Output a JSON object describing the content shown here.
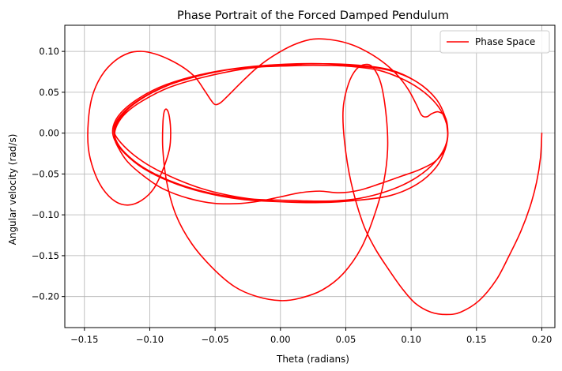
{
  "chart_data": {
    "type": "line",
    "title": "Phase Portrait of the Forced Damped Pendulum",
    "xlabel": "Theta (radians)",
    "ylabel": "Angular velocity (rad/s)",
    "xlim": [
      -0.165,
      0.21
    ],
    "ylim": [
      -0.238,
      0.132
    ],
    "xticks": [
      -0.15,
      -0.1,
      -0.05,
      0.0,
      0.05,
      0.1,
      0.15,
      0.2
    ],
    "xtick_labels": [
      "−0.15",
      "−0.10",
      "−0.05",
      "0.00",
      "0.05",
      "0.10",
      "0.15",
      "0.20"
    ],
    "yticks": [
      -0.2,
      -0.15,
      -0.1,
      -0.05,
      0.0,
      0.05,
      0.1
    ],
    "ytick_labels": [
      "−0.20",
      "−0.15",
      "−0.10",
      "−0.05",
      "0.00",
      "0.05",
      "0.10"
    ],
    "grid": true,
    "legend_position": "top-right",
    "series": [
      {
        "name": "Phase Space",
        "color": "#ff0000",
        "points": [
          [
            0.2,
            0.0
          ],
          [
            0.199,
            -0.03
          ],
          [
            0.196,
            -0.06
          ],
          [
            0.191,
            -0.09
          ],
          [
            0.184,
            -0.12
          ],
          [
            0.175,
            -0.15
          ],
          [
            0.165,
            -0.18
          ],
          [
            0.152,
            -0.205
          ],
          [
            0.138,
            -0.219
          ],
          [
            0.127,
            -0.222
          ],
          [
            0.115,
            -0.219
          ],
          [
            0.103,
            -0.208
          ],
          [
            0.093,
            -0.19
          ],
          [
            0.082,
            -0.165
          ],
          [
            0.072,
            -0.14
          ],
          [
            0.063,
            -0.11
          ],
          [
            0.054,
            -0.06
          ],
          [
            0.049,
            -0.01
          ],
          [
            0.048,
            0.03
          ],
          [
            0.052,
            0.06
          ],
          [
            0.058,
            0.078
          ],
          [
            0.065,
            0.084
          ],
          [
            0.071,
            0.08
          ],
          [
            0.077,
            0.06
          ],
          [
            0.081,
            0.02
          ],
          [
            0.082,
            -0.02
          ],
          [
            0.079,
            -0.06
          ],
          [
            0.072,
            -0.1
          ],
          [
            0.062,
            -0.14
          ],
          [
            0.048,
            -0.172
          ],
          [
            0.032,
            -0.192
          ],
          [
            0.015,
            -0.202
          ],
          [
            0.0,
            -0.205
          ],
          [
            -0.018,
            -0.2
          ],
          [
            -0.035,
            -0.188
          ],
          [
            -0.052,
            -0.165
          ],
          [
            -0.068,
            -0.135
          ],
          [
            -0.08,
            -0.1
          ],
          [
            -0.087,
            -0.06
          ],
          [
            -0.09,
            -0.02
          ],
          [
            -0.09,
            0.01
          ],
          [
            -0.089,
            0.026
          ],
          [
            -0.087,
            0.029
          ],
          [
            -0.085,
            0.02
          ],
          [
            -0.084,
            0.0
          ],
          [
            -0.085,
            -0.02
          ],
          [
            -0.09,
            -0.045
          ],
          [
            -0.097,
            -0.068
          ],
          [
            -0.106,
            -0.082
          ],
          [
            -0.116,
            -0.088
          ],
          [
            -0.126,
            -0.084
          ],
          [
            -0.136,
            -0.068
          ],
          [
            -0.143,
            -0.045
          ],
          [
            -0.147,
            -0.018
          ],
          [
            -0.147,
            0.015
          ],
          [
            -0.144,
            0.045
          ],
          [
            -0.137,
            0.07
          ],
          [
            -0.127,
            0.088
          ],
          [
            -0.116,
            0.098
          ],
          [
            -0.106,
            0.1
          ],
          [
            -0.096,
            0.097
          ],
          [
            -0.085,
            0.09
          ],
          [
            -0.074,
            0.08
          ],
          [
            -0.065,
            0.068
          ],
          [
            -0.058,
            0.052
          ],
          [
            -0.053,
            0.04
          ],
          [
            -0.05,
            0.035
          ],
          [
            -0.046,
            0.037
          ],
          [
            -0.04,
            0.046
          ],
          [
            -0.03,
            0.062
          ],
          [
            -0.018,
            0.08
          ],
          [
            -0.005,
            0.095
          ],
          [
            0.01,
            0.108
          ],
          [
            0.025,
            0.115
          ],
          [
            0.04,
            0.114
          ],
          [
            0.055,
            0.108
          ],
          [
            0.068,
            0.098
          ],
          [
            0.08,
            0.085
          ],
          [
            0.09,
            0.07
          ],
          [
            0.098,
            0.053
          ],
          [
            0.104,
            0.035
          ],
          [
            0.108,
            0.022
          ],
          [
            0.112,
            0.02
          ],
          [
            0.116,
            0.024
          ],
          [
            0.121,
            0.026
          ],
          [
            0.126,
            0.02
          ],
          [
            0.128,
            0.005
          ],
          [
            0.127,
            -0.012
          ],
          [
            0.122,
            -0.028
          ],
          [
            0.112,
            -0.045
          ],
          [
            0.098,
            -0.06
          ],
          [
            0.08,
            -0.072
          ],
          [
            0.06,
            -0.08
          ],
          [
            0.04,
            -0.083
          ],
          [
            0.02,
            -0.083
          ],
          [
            0.0,
            -0.082
          ],
          [
            -0.02,
            -0.081
          ],
          [
            -0.04,
            -0.076
          ],
          [
            -0.06,
            -0.068
          ],
          [
            -0.08,
            -0.056
          ],
          [
            -0.098,
            -0.042
          ],
          [
            -0.112,
            -0.027
          ],
          [
            -0.122,
            -0.012
          ],
          [
            -0.127,
            0.0
          ],
          [
            -0.126,
            0.01
          ],
          [
            -0.12,
            0.024
          ],
          [
            -0.11,
            0.038
          ],
          [
            -0.095,
            0.052
          ],
          [
            -0.075,
            0.065
          ],
          [
            -0.05,
            0.075
          ],
          [
            -0.025,
            0.08
          ],
          [
            0.0,
            0.082
          ],
          [
            0.025,
            0.083
          ],
          [
            0.05,
            0.082
          ],
          [
            0.075,
            0.077
          ],
          [
            0.095,
            0.065
          ],
          [
            0.11,
            0.05
          ],
          [
            0.121,
            0.032
          ],
          [
            0.127,
            0.012
          ],
          [
            0.128,
            -0.005
          ],
          [
            0.125,
            -0.022
          ],
          [
            0.118,
            -0.035
          ],
          [
            0.106,
            -0.045
          ],
          [
            0.092,
            -0.053
          ],
          [
            0.076,
            -0.062
          ],
          [
            0.06,
            -0.07
          ],
          [
            0.045,
            -0.073
          ],
          [
            0.03,
            -0.071
          ],
          [
            0.015,
            -0.073
          ],
          [
            0.0,
            -0.078
          ],
          [
            -0.015,
            -0.083
          ],
          [
            -0.03,
            -0.086
          ],
          [
            -0.05,
            -0.086
          ],
          [
            -0.07,
            -0.08
          ],
          [
            -0.09,
            -0.068
          ],
          [
            -0.105,
            -0.052
          ],
          [
            -0.117,
            -0.035
          ],
          [
            -0.124,
            -0.018
          ],
          [
            -0.127,
            -0.005
          ],
          [
            -0.125,
            0.01
          ],
          [
            -0.118,
            0.025
          ],
          [
            -0.105,
            0.04
          ],
          [
            -0.085,
            0.056
          ],
          [
            -0.06,
            0.068
          ],
          [
            -0.03,
            0.078
          ],
          [
            0.0,
            0.083
          ],
          [
            0.03,
            0.085
          ],
          [
            0.06,
            0.083
          ],
          [
            0.085,
            0.077
          ],
          [
            0.105,
            0.062
          ],
          [
            0.119,
            0.042
          ],
          [
            0.126,
            0.02
          ],
          [
            0.128,
            0.0
          ],
          [
            0.126,
            -0.02
          ],
          [
            0.119,
            -0.042
          ],
          [
            0.105,
            -0.062
          ],
          [
            0.085,
            -0.076
          ],
          [
            0.06,
            -0.082
          ],
          [
            0.03,
            -0.085
          ],
          [
            0.0,
            -0.084
          ],
          [
            -0.03,
            -0.08
          ],
          [
            -0.06,
            -0.071
          ],
          [
            -0.085,
            -0.058
          ],
          [
            -0.105,
            -0.042
          ],
          [
            -0.119,
            -0.024
          ],
          [
            -0.126,
            -0.008
          ],
          [
            -0.127,
            0.008
          ],
          [
            -0.121,
            0.024
          ],
          [
            -0.107,
            0.042
          ],
          [
            -0.087,
            0.058
          ],
          [
            -0.06,
            0.071
          ],
          [
            -0.03,
            0.08
          ],
          [
            0.0,
            0.084
          ],
          [
            0.03,
            0.085
          ],
          [
            0.06,
            0.082
          ],
          [
            0.085,
            0.076
          ],
          [
            0.105,
            0.062
          ],
          [
            0.119,
            0.042
          ],
          [
            0.126,
            0.02
          ],
          [
            0.128,
            0.0
          ],
          [
            0.126,
            -0.02
          ],
          [
            0.119,
            -0.042
          ],
          [
            0.105,
            -0.062
          ],
          [
            0.085,
            -0.076
          ],
          [
            0.06,
            -0.082
          ],
          [
            0.03,
            -0.084
          ],
          [
            0.0,
            -0.084
          ],
          [
            -0.03,
            -0.081
          ],
          [
            -0.06,
            -0.072
          ],
          [
            -0.085,
            -0.059
          ],
          [
            -0.105,
            -0.043
          ],
          [
            -0.119,
            -0.025
          ],
          [
            -0.127,
            -0.008
          ],
          [
            -0.128,
            0.008
          ],
          [
            -0.122,
            0.025
          ],
          [
            -0.108,
            0.043
          ],
          [
            -0.088,
            0.059
          ],
          [
            -0.06,
            0.072
          ],
          [
            -0.03,
            0.08
          ],
          [
            0.0,
            0.084
          ],
          [
            0.03,
            0.085
          ],
          [
            0.06,
            0.082
          ],
          [
            0.085,
            0.076
          ],
          [
            0.105,
            0.062
          ],
          [
            0.119,
            0.042
          ],
          [
            0.126,
            0.02
          ],
          [
            0.128,
            0.0
          ]
        ]
      }
    ]
  }
}
